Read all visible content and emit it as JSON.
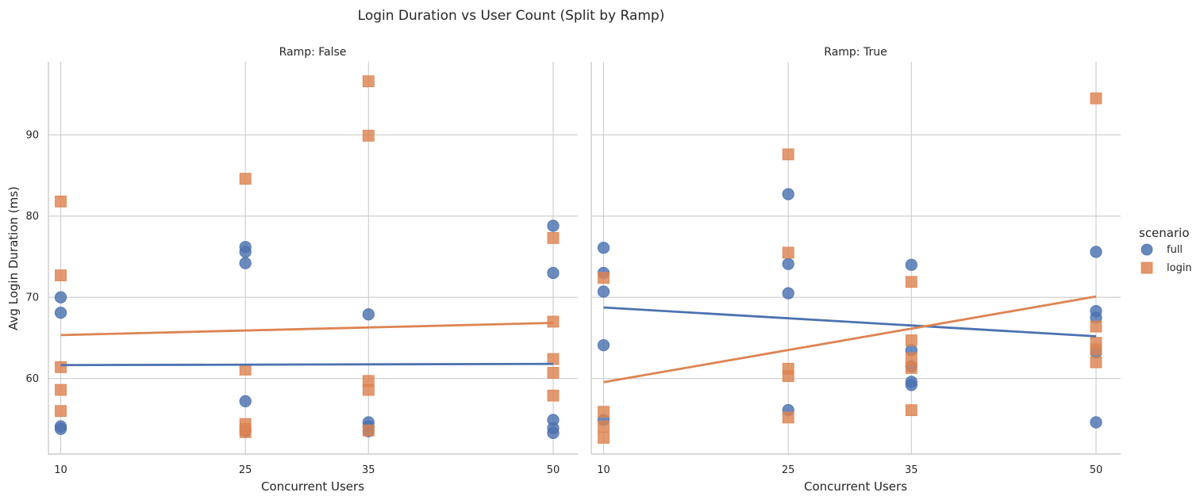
{
  "chart_data": {
    "type": "scatter",
    "title": "Login Duration vs User Count (Split by Ramp)",
    "xlabel": "Concurrent Users",
    "ylabel": "Avg Login Duration (ms)",
    "xlim": [
      9,
      52
    ],
    "ylim": [
      50.7,
      99
    ],
    "xticks": [
      10,
      25,
      35,
      50
    ],
    "yticks": [
      60,
      70,
      80,
      90
    ],
    "grid": true,
    "legend": {
      "title": "scenario",
      "placement": "right"
    },
    "colors": {
      "full": "#4c72b0",
      "login": "#dd8452"
    },
    "facets": [
      {
        "title": "Ramp: False",
        "series": [
          {
            "name": "full",
            "marker": "circle",
            "points": [
              [
                10,
                70.0
              ],
              [
                10,
                68.1
              ],
              [
                10,
                54.1
              ],
              [
                10,
                53.8
              ],
              [
                25,
                76.2
              ],
              [
                25,
                75.6
              ],
              [
                25,
                74.2
              ],
              [
                25,
                57.2
              ],
              [
                25,
                53.5
              ],
              [
                35,
                67.9
              ],
              [
                35,
                54.6
              ],
              [
                35,
                54.1
              ],
              [
                35,
                53.5
              ],
              [
                50,
                78.8
              ],
              [
                50,
                73.0
              ],
              [
                50,
                54.9
              ],
              [
                50,
                53.9
              ],
              [
                50,
                53.3
              ]
            ],
            "trend": [
              [
                10,
                61.65
              ],
              [
                50,
                61.8
              ]
            ]
          },
          {
            "name": "login",
            "marker": "square",
            "points": [
              [
                10,
                81.8
              ],
              [
                10,
                72.7
              ],
              [
                10,
                61.4
              ],
              [
                10,
                58.6
              ],
              [
                10,
                56.0
              ],
              [
                25,
                84.6
              ],
              [
                25,
                61.1
              ],
              [
                25,
                54.4
              ],
              [
                25,
                53.8
              ],
              [
                25,
                53.4
              ],
              [
                35,
                96.6
              ],
              [
                35,
                89.9
              ],
              [
                35,
                59.7
              ],
              [
                35,
                58.6
              ],
              [
                35,
                53.6
              ],
              [
                50,
                77.3
              ],
              [
                50,
                67.0
              ],
              [
                50,
                62.4
              ],
              [
                50,
                60.7
              ],
              [
                50,
                57.9
              ]
            ],
            "trend": [
              [
                10,
                65.35
              ],
              [
                50,
                66.85
              ]
            ]
          }
        ]
      },
      {
        "title": "Ramp: True",
        "series": [
          {
            "name": "full",
            "marker": "circle",
            "points": [
              [
                10,
                76.1
              ],
              [
                10,
                73.0
              ],
              [
                10,
                70.7
              ],
              [
                10,
                64.1
              ],
              [
                10,
                54.9
              ],
              [
                25,
                82.7
              ],
              [
                25,
                74.1
              ],
              [
                25,
                70.5
              ],
              [
                25,
                56.1
              ],
              [
                35,
                74.0
              ],
              [
                35,
                63.5
              ],
              [
                35,
                61.5
              ],
              [
                35,
                59.6
              ],
              [
                35,
                59.2
              ],
              [
                50,
                75.6
              ],
              [
                50,
                68.3
              ],
              [
                50,
                67.5
              ],
              [
                50,
                63.2
              ],
              [
                50,
                54.6
              ]
            ],
            "trend": [
              [
                10,
                68.75
              ],
              [
                50,
                65.2
              ]
            ]
          },
          {
            "name": "login",
            "marker": "square",
            "points": [
              [
                10,
                72.4
              ],
              [
                10,
                55.9
              ],
              [
                10,
                54.1
              ],
              [
                10,
                52.7
              ],
              [
                25,
                87.6
              ],
              [
                25,
                75.5
              ],
              [
                25,
                61.2
              ],
              [
                25,
                60.3
              ],
              [
                25,
                55.2
              ],
              [
                35,
                71.9
              ],
              [
                35,
                64.7
              ],
              [
                35,
                62.5
              ],
              [
                35,
                61.3
              ],
              [
                35,
                56.1
              ],
              [
                50,
                94.5
              ],
              [
                50,
                66.4
              ],
              [
                50,
                64.4
              ],
              [
                50,
                63.6
              ],
              [
                50,
                62.0
              ]
            ],
            "trend": [
              [
                10,
                59.55
              ],
              [
                50,
                70.1
              ]
            ]
          }
        ]
      }
    ]
  }
}
